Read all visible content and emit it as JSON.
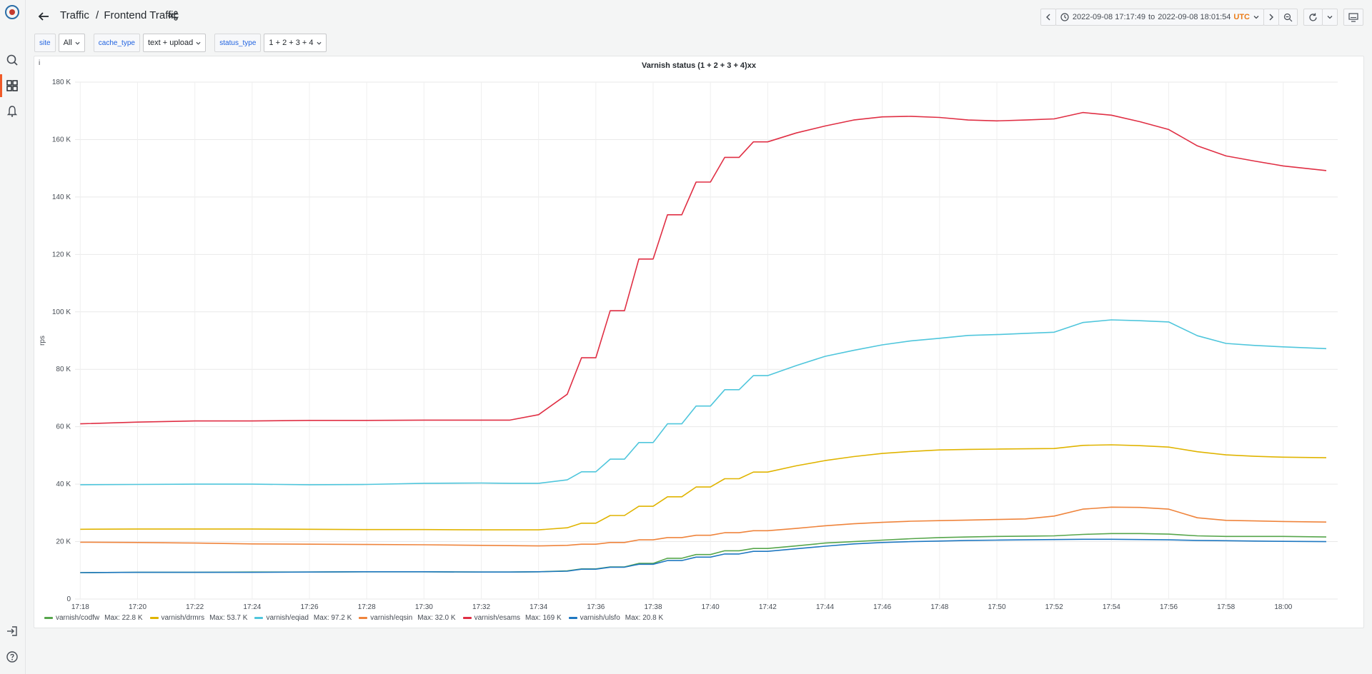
{
  "breadcrumb": {
    "parent": "Traffic",
    "separator": "/",
    "current": "Frontend Traffic"
  },
  "time_range": {
    "from": "2022-09-08 17:17:49",
    "to_word": "to",
    "to": "2022-09-08 18:01:54",
    "tz": "UTC"
  },
  "variables": [
    {
      "label": "site",
      "value": "All"
    },
    {
      "label": "cache_type",
      "value": "text + upload"
    },
    {
      "label": "status_type",
      "value": "1 + 2 + 3 + 4"
    }
  ],
  "panel": {
    "info": "i"
  },
  "legend_items": [
    {
      "name": "varnish/codfw",
      "max_label": "Max: 22.8 K"
    },
    {
      "name": "varnish/drmrs",
      "max_label": "Max: 53.7 K"
    },
    {
      "name": "varnish/eqiad",
      "max_label": "Max: 97.2 K"
    },
    {
      "name": "varnish/eqsin",
      "max_label": "Max: 32.0 K"
    },
    {
      "name": "varnish/esams",
      "max_label": "Max: 169 K"
    },
    {
      "name": "varnish/ulsfo",
      "max_label": "Max: 20.8 K"
    }
  ],
  "chart_data": {
    "type": "line",
    "title": "Varnish status (1 + 2 + 3 + 4)xx",
    "ylabel": "rps",
    "xlabel": "",
    "ylim": [
      0,
      180000
    ],
    "xlim": [
      "17:17:49",
      "18:01:54"
    ],
    "grid": true,
    "legend_position": "bottom-left",
    "y_ticks": [
      0,
      20000,
      40000,
      60000,
      80000,
      100000,
      120000,
      140000,
      160000,
      180000
    ],
    "y_tick_labels": [
      "0",
      "20 K",
      "40 K",
      "60 K",
      "80 K",
      "100 K",
      "120 K",
      "140 K",
      "160 K",
      "180 K"
    ],
    "x_ticks": [
      "17:18",
      "17:20",
      "17:22",
      "17:24",
      "17:26",
      "17:28",
      "17:30",
      "17:32",
      "17:34",
      "17:36",
      "17:38",
      "17:40",
      "17:42",
      "17:44",
      "17:46",
      "17:48",
      "17:50",
      "17:52",
      "17:54",
      "17:56",
      "17:58",
      "18:00"
    ],
    "x": [
      "17:18",
      "17:20",
      "17:22",
      "17:24",
      "17:26",
      "17:28",
      "17:30",
      "17:32",
      "17:33",
      "17:34",
      "17:35",
      "17:35:30",
      "17:36",
      "17:36:30",
      "17:37",
      "17:37:30",
      "17:38",
      "17:38:30",
      "17:39",
      "17:39:30",
      "17:40",
      "17:40:30",
      "17:41",
      "17:41:30",
      "17:42",
      "17:43",
      "17:44",
      "17:45",
      "17:46",
      "17:47",
      "17:48",
      "17:49",
      "17:50",
      "17:51",
      "17:52",
      "17:53",
      "17:54",
      "17:55",
      "17:56",
      "17:57",
      "17:58",
      "17:59",
      "18:00",
      "18:01:30"
    ],
    "series": [
      {
        "name": "varnish/codfw",
        "color": "#56a64b",
        "values": [
          9200,
          9300,
          9300,
          9400,
          9400,
          9500,
          9500,
          9400,
          9400,
          9500,
          9800,
          10500,
          10500,
          11200,
          11200,
          12400,
          12400,
          14200,
          14200,
          15500,
          15500,
          16800,
          16800,
          17600,
          17600,
          18500,
          19500,
          20000,
          20500,
          21000,
          21400,
          21600,
          21800,
          21900,
          22000,
          22500,
          22800,
          22800,
          22600,
          22000,
          21800,
          21800,
          21800,
          21600
        ]
      },
      {
        "name": "varnish/drmrs",
        "color": "#e0b400",
        "values": [
          24300,
          24400,
          24400,
          24400,
          24300,
          24200,
          24200,
          24100,
          24100,
          24100,
          24800,
          26400,
          26400,
          29100,
          29100,
          32300,
          32300,
          35600,
          35600,
          39000,
          39000,
          41900,
          41900,
          44200,
          44200,
          46400,
          48200,
          49600,
          50700,
          51400,
          51900,
          52100,
          52200,
          52300,
          52400,
          53500,
          53700,
          53400,
          52900,
          51300,
          50200,
          49700,
          49400,
          49200
        ]
      },
      {
        "name": "varnish/eqiad",
        "color": "#4fc6dc",
        "values": [
          39800,
          39900,
          40000,
          40000,
          39800,
          39900,
          40300,
          40400,
          40300,
          40300,
          41500,
          44300,
          44300,
          48700,
          48700,
          54500,
          54500,
          61000,
          61000,
          67200,
          67200,
          72900,
          72900,
          77800,
          77800,
          81300,
          84500,
          86600,
          88500,
          89900,
          90800,
          91800,
          92100,
          92500,
          92900,
          96300,
          97200,
          96900,
          96500,
          91700,
          89000,
          88300,
          87800,
          87200
        ]
      },
      {
        "name": "varnish/eqsin",
        "color": "#ef843c",
        "values": [
          19800,
          19700,
          19500,
          19200,
          19100,
          19000,
          18900,
          18700,
          18600,
          18500,
          18700,
          19100,
          19100,
          19700,
          19700,
          20600,
          20600,
          21400,
          21400,
          22200,
          22200,
          23100,
          23100,
          23800,
          23800,
          24600,
          25500,
          26200,
          26700,
          27100,
          27300,
          27500,
          27700,
          27900,
          28900,
          31300,
          32000,
          31900,
          31300,
          28300,
          27400,
          27200,
          27000,
          26800
        ]
      },
      {
        "name": "varnish/esams",
        "color": "#e02f44",
        "values": [
          61000,
          61600,
          62000,
          62000,
          62200,
          62200,
          62300,
          62300,
          62300,
          64200,
          71300,
          84000,
          84000,
          100400,
          100400,
          118400,
          118400,
          133800,
          133800,
          145200,
          145200,
          153800,
          153800,
          159200,
          159200,
          162300,
          164700,
          166800,
          167900,
          168100,
          167700,
          166800,
          166500,
          166800,
          167200,
          169400,
          168500,
          166200,
          163500,
          157800,
          154300,
          152500,
          150800,
          149200
        ]
      },
      {
        "name": "varnish/ulsfo",
        "color": "#1f78c1",
        "values": [
          9200,
          9300,
          9300,
          9300,
          9400,
          9500,
          9500,
          9400,
          9400,
          9500,
          9700,
          10400,
          10400,
          11100,
          11100,
          12100,
          12100,
          13400,
          13400,
          14600,
          14600,
          15700,
          15700,
          16600,
          16600,
          17500,
          18400,
          19200,
          19700,
          20000,
          20200,
          20400,
          20500,
          20600,
          20700,
          20800,
          20800,
          20700,
          20600,
          20400,
          20300,
          20200,
          20100,
          20000
        ]
      }
    ]
  }
}
